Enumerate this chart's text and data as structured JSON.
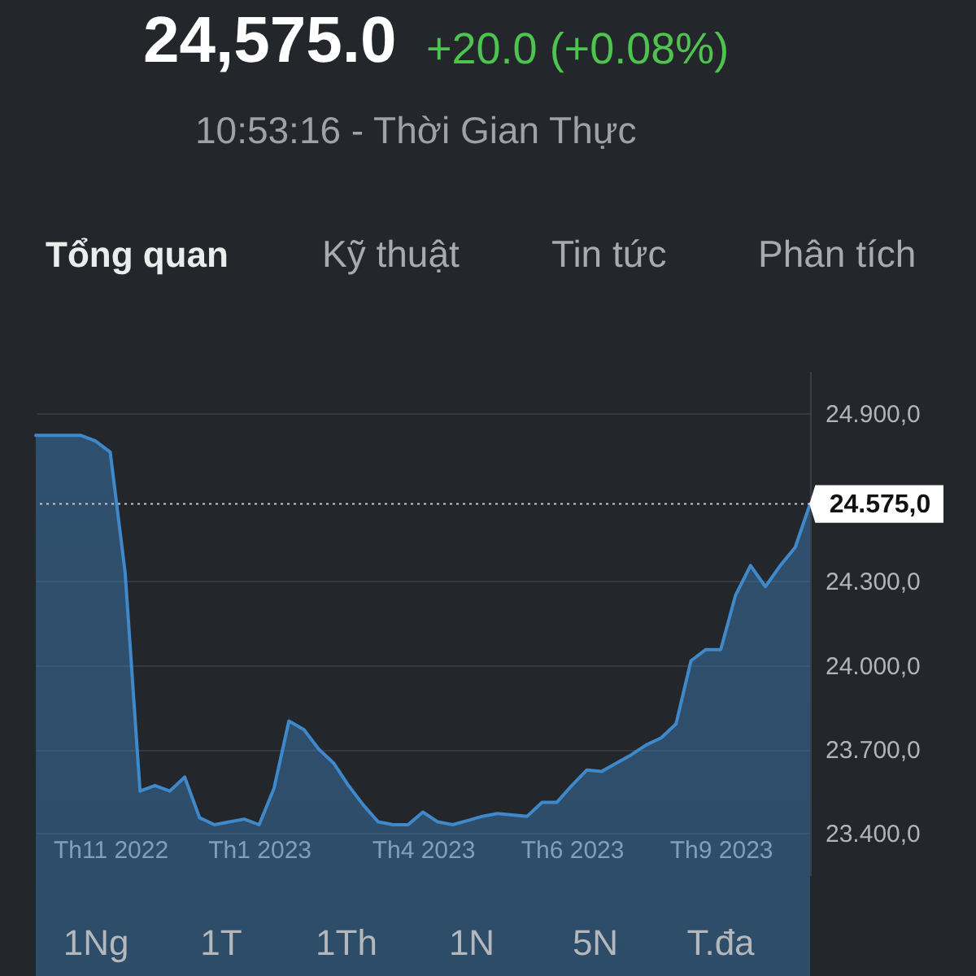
{
  "chart_data": {
    "type": "area",
    "title": "24,575.0",
    "subtitle": "+20.0 (+0.08%)",
    "annotations": [
      "10:53:16 - Thời Gian Thực",
      "Tổng quan",
      "Kỹ thuật",
      "Tin tức",
      "Phân tích",
      "1Ng",
      "1T",
      "1Th",
      "1N",
      "5N",
      "T.đa"
    ],
    "categories": [
      null,
      null,
      null,
      null,
      null,
      "Th11 2022",
      null,
      null,
      null,
      null,
      null,
      null,
      null,
      null,
      null,
      "Th1 2023",
      null,
      null,
      null,
      null,
      null,
      null,
      null,
      null,
      null,
      null,
      "Th4 2023",
      null,
      null,
      null,
      null,
      null,
      null,
      null,
      null,
      null,
      "Th6 2023",
      null,
      null,
      null,
      null,
      null,
      null,
      null,
      null,
      null,
      "Th9 2023",
      null,
      null,
      null,
      null,
      null,
      null
    ],
    "series": [
      {
        "color": "#3f88c9",
        "values": [
          24820,
          24820,
          24820,
          24820,
          24800,
          24760,
          24330,
          23550,
          23570,
          23550,
          23600,
          23455,
          23430,
          23440,
          23450,
          23430,
          23560,
          23800,
          23770,
          23700,
          23650,
          23570,
          23500,
          23440,
          23430,
          23430,
          23475,
          23440,
          23430,
          23445,
          23460,
          23470,
          23465,
          23460,
          23510,
          23510,
          23570,
          23625,
          23620,
          23650,
          23680,
          23715,
          23740,
          23790,
          24015,
          24055,
          24055,
          24250,
          24355,
          24280,
          24355,
          24420,
          24575
        ]
      }
    ],
    "ylim": [
      23250,
      25050
    ],
    "yticks": [
      {
        "value": 23400,
        "label": "23.400,0"
      },
      {
        "value": 23700,
        "label": "23.700,0"
      },
      {
        "value": 24000,
        "label": "24.000,0"
      },
      {
        "value": 24300,
        "label": "24.300,0"
      },
      {
        "value": 24900,
        "label": "24.900,0"
      }
    ],
    "ref_lines": [
      {
        "axis": "y",
        "value": 24575,
        "label": "24.575,0",
        "line_style": "dotted",
        "color": "#c8c8c8"
      }
    ],
    "grid": "y"
  }
}
